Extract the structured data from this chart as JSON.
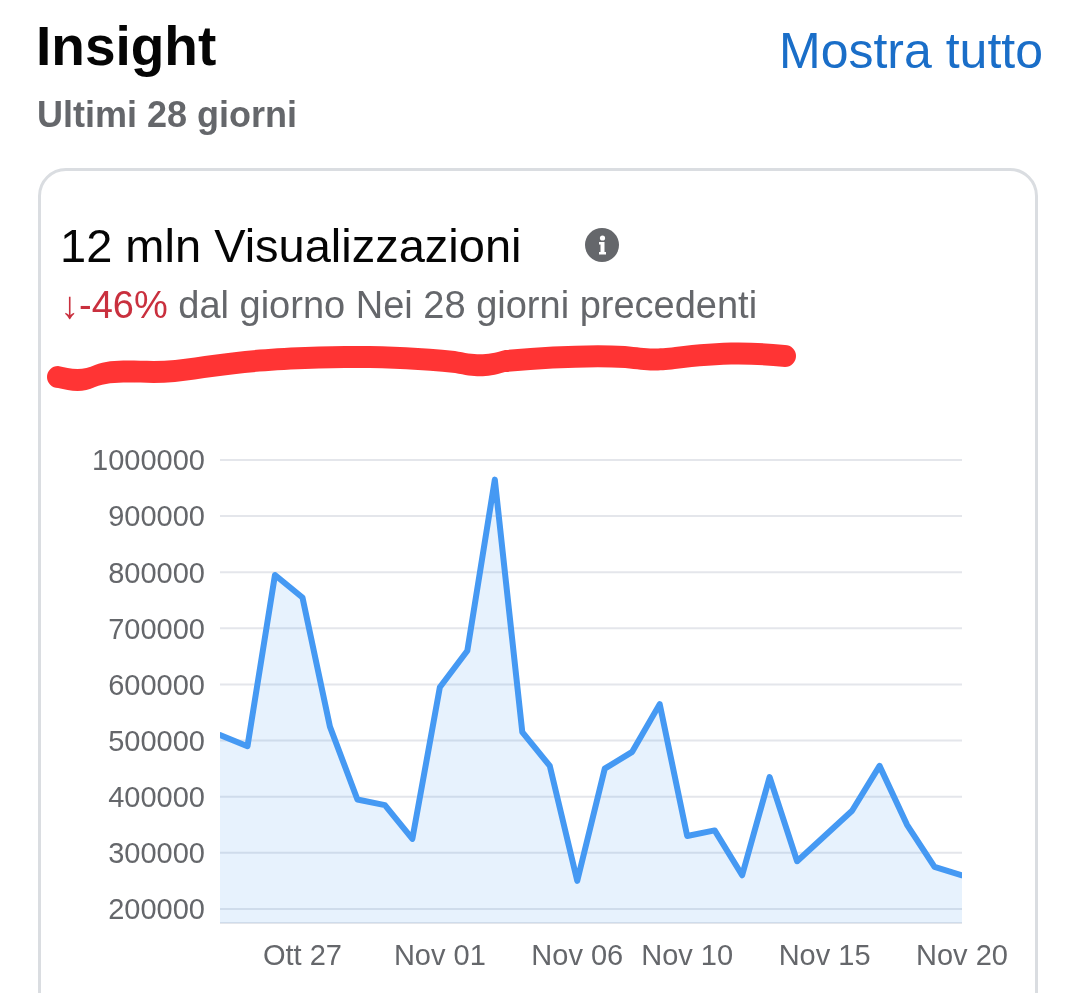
{
  "chart_data": {
    "type": "area",
    "title": "Insight",
    "subtitle": "Ultimi 28 giorni",
    "annotations": [
      "Mostra tutto",
      "12 mln Visualizzazioni",
      "↓-46% dal giorno Nei 28 giorni precedenti"
    ],
    "x": [
      "--10-24",
      "--10-25",
      "--10-26",
      "--10-27",
      "--10-28",
      "--10-29",
      "--10-30",
      "--10-31",
      "--11-01",
      "--11-02",
      "--11-03",
      "--11-04",
      "--11-05",
      "--11-06",
      "--11-07",
      "--11-08",
      "--11-09",
      "--11-10",
      "--11-11",
      "--11-12",
      "--11-13",
      "--11-14",
      "--11-15",
      "--11-16",
      "--11-17",
      "--11-18",
      "--11-19",
      "--11-20"
    ],
    "values": [
      510000,
      490000,
      795000,
      755000,
      525000,
      395000,
      385000,
      325000,
      595000,
      660000,
      965000,
      515000,
      455000,
      250000,
      450000,
      480000,
      565000,
      330000,
      340000,
      260000,
      435000,
      285000,
      330000,
      375000,
      455000,
      350000,
      275000,
      260000
    ],
    "color": "#4599f3",
    "xlim": [
      "--10-24",
      "--11-20"
    ],
    "xticks": [
      {
        "value": "--10-27",
        "label": "Ott 27"
      },
      {
        "value": "--11-01",
        "label": "Nov 01"
      },
      {
        "value": "--11-06",
        "label": "Nov 06"
      },
      {
        "value": "--11-10",
        "label": "Nov 10"
      },
      {
        "value": "--11-15",
        "label": "Nov 15"
      },
      {
        "value": "--11-20",
        "label": "Nov 20"
      }
    ],
    "ylim": [
      175000,
      1000000
    ],
    "yticks": [
      200000,
      300000,
      400000,
      500000,
      600000,
      700000,
      800000,
      900000,
      1000000
    ],
    "grid": "y"
  }
}
